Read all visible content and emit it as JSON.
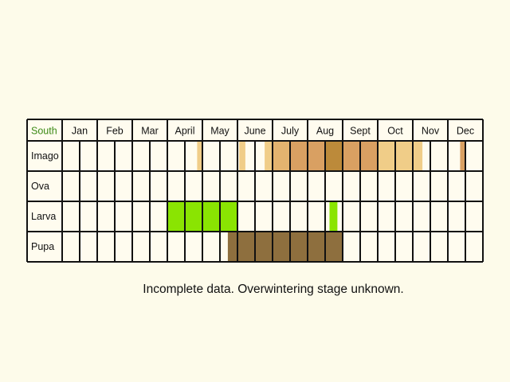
{
  "chart_data": {
    "type": "table",
    "region_label": "South",
    "region_color": "#3b8a16",
    "months": [
      "Jan",
      "Feb",
      "Mar",
      "April",
      "May",
      "June",
      "July",
      "Aug",
      "Sept",
      "Oct",
      "Nov",
      "Dec"
    ],
    "weeks_per_month": 2,
    "stages": [
      {
        "name": "Imago",
        "cells": [
          {
            "week": 7,
            "from": 0.7,
            "to": 1.0,
            "color": "#f0cd88"
          },
          {
            "week": 10,
            "from": 0.1,
            "to": 0.45,
            "color": "#f0cd88"
          },
          {
            "week": 11,
            "from": 0.55,
            "to": 1.0,
            "color": "#f0cd88"
          },
          {
            "week": 12,
            "color": "#e3b36f"
          },
          {
            "week": 13,
            "color": "#d9a062"
          },
          {
            "week": 14,
            "color": "#d9a062"
          },
          {
            "week": 15,
            "color": "#bc8a3a"
          },
          {
            "week": 16,
            "color": "#d9a062"
          },
          {
            "week": 17,
            "color": "#d9a062"
          },
          {
            "week": 18,
            "color": "#f0cd88"
          },
          {
            "week": 19,
            "color": "#f0cd88"
          },
          {
            "week": 20,
            "from": 0.0,
            "to": 0.55,
            "color": "#f0cd88"
          },
          {
            "week": 22,
            "from": 0.7,
            "to": 1.0,
            "color": "#d9a062"
          }
        ]
      },
      {
        "name": "Ova",
        "cells": []
      },
      {
        "name": "Larva",
        "cells": [
          {
            "week": 6,
            "color": "#8ae402"
          },
          {
            "week": 7,
            "color": "#8ae402"
          },
          {
            "week": 8,
            "color": "#8ae402"
          },
          {
            "week": 9,
            "color": "#8ae402"
          },
          {
            "week": 15,
            "from": 0.25,
            "to": 0.7,
            "color": "#8ae402"
          }
        ]
      },
      {
        "name": "Pupa",
        "cells": [
          {
            "week": 9,
            "from": 0.45,
            "to": 1.0,
            "color": "#8e6f3e"
          },
          {
            "week": 10,
            "color": "#8e6f3e"
          },
          {
            "week": 11,
            "color": "#8e6f3e"
          },
          {
            "week": 12,
            "color": "#8e6f3e"
          },
          {
            "week": 13,
            "color": "#8e6f3e"
          },
          {
            "week": 14,
            "color": "#8e6f3e"
          },
          {
            "week": 15,
            "color": "#8e6f3e"
          }
        ]
      }
    ],
    "grid": true,
    "grid_color": "#111111",
    "background": "#fdfbea",
    "cell_background": "#fffcef"
  },
  "note": "Incomplete data. Overwintering stage unknown."
}
